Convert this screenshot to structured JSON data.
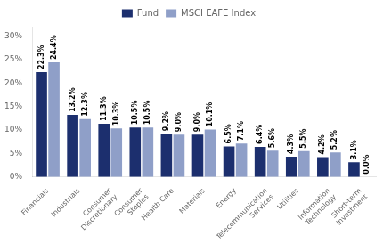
{
  "chart_data": {
    "type": "bar",
    "categories": [
      "Financials",
      "Industrials",
      "Consumer\nDiscretionary",
      "Consumer\nStaples",
      "Health Care",
      "Materials",
      "Energy",
      "Telecommunication\nServices",
      "Utilities",
      "Information\nTechnology",
      "Short-term\nInvestment"
    ],
    "series": [
      {
        "name": "Fund",
        "color": "#1c2f6e",
        "values": [
          22.3,
          13.2,
          11.3,
          10.5,
          9.2,
          9.0,
          6.5,
          6.4,
          4.3,
          4.2,
          3.1
        ],
        "value_labels": [
          "22.3%",
          "13.2%",
          "11.3%",
          "10.5%",
          "9.2%",
          "9.0%",
          "6.5%",
          "6.4%",
          "4.3%",
          "4.2%",
          "3.1%"
        ]
      },
      {
        "name": "MSCI EAFE Index",
        "color": "#8f9fc8",
        "values": [
          24.4,
          12.3,
          10.3,
          10.5,
          9.0,
          10.1,
          7.1,
          5.6,
          5.5,
          5.2,
          0.0
        ],
        "value_labels": [
          "24.4%",
          "12.3%",
          "10.3%",
          "10.5%",
          "9.0%",
          "10.1%",
          "7.1%",
          "5.6%",
          "5.5%",
          "5.2%",
          "0.0%"
        ]
      }
    ],
    "ylim": [
      0,
      32
    ],
    "yticks": [
      {
        "value": 0,
        "label": "0%"
      },
      {
        "value": 5,
        "label": "5%"
      },
      {
        "value": 10,
        "label": "10%"
      },
      {
        "value": 15,
        "label": "15%"
      },
      {
        "value": 20,
        "label": "20%"
      },
      {
        "value": 25,
        "label": "25%"
      },
      {
        "value": 30,
        "label": "30%"
      }
    ],
    "grid": false,
    "legend": "top",
    "data_labels": true
  }
}
